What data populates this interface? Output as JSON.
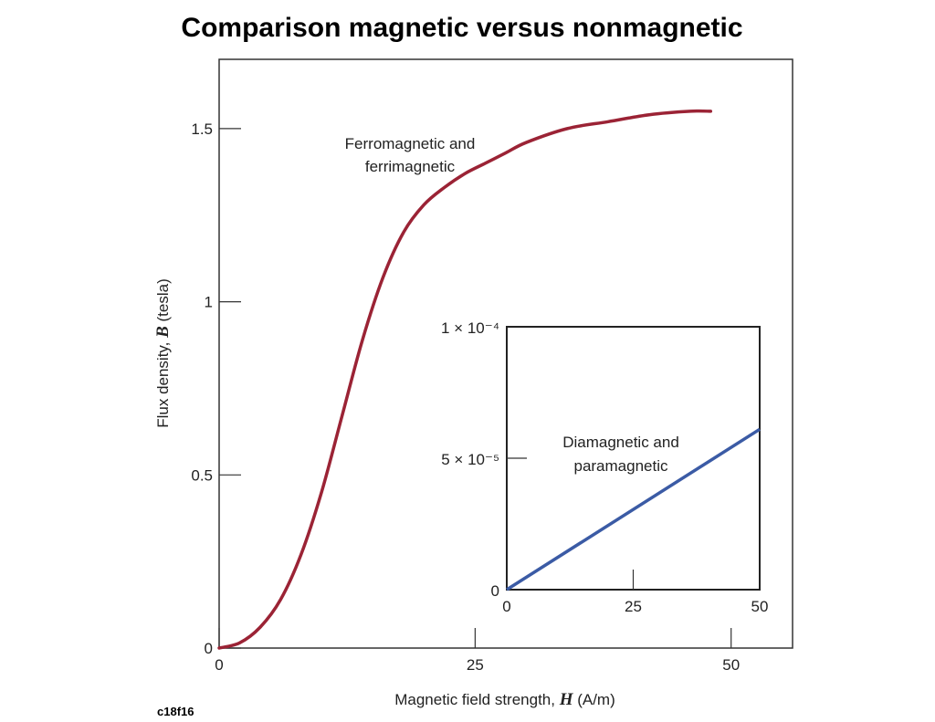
{
  "title": "Comparison magnetic versus nonmagnetic",
  "figure_code": "c18f16",
  "chart_data": [
    {
      "type": "line",
      "xlabel": "Magnetic field strength, ",
      "xlabel_var": "H",
      "xlabel_unit": " (A/m)",
      "ylabel": "Flux density, ",
      "ylabel_var": "B",
      "ylabel_unit": " (tesla)",
      "xlim": [
        0,
        56
      ],
      "ylim": [
        0,
        1.7
      ],
      "x_ticks": [
        0,
        25,
        50
      ],
      "x_tick_labels": [
        "0",
        "25",
        "50"
      ],
      "y_ticks": [
        0,
        0.5,
        1,
        1.5
      ],
      "y_tick_labels": [
        "0",
        "0.5",
        "1",
        "1.5"
      ],
      "grid": false,
      "series": [
        {
          "label": "Ferromagnetic and ferrimagnetic",
          "label_lines": [
            "Ferromagnetic and",
            "ferrimagnetic"
          ],
          "color": "#9b2335",
          "x": [
            0,
            2,
            4,
            6,
            8,
            10,
            12,
            14,
            16,
            18,
            20,
            22,
            24,
            26,
            28,
            30,
            34,
            38,
            42,
            46,
            48
          ],
          "y": [
            0,
            0.015,
            0.06,
            0.14,
            0.27,
            0.45,
            0.67,
            0.89,
            1.07,
            1.2,
            1.28,
            1.33,
            1.37,
            1.4,
            1.43,
            1.46,
            1.5,
            1.52,
            1.54,
            1.55,
            1.55
          ]
        }
      ]
    },
    {
      "type": "line",
      "xlim": [
        0,
        50
      ],
      "ylim": [
        0,
        0.0001
      ],
      "x_ticks": [
        0,
        25,
        50
      ],
      "x_tick_labels": [
        "0",
        "25",
        "50"
      ],
      "y_ticks": [
        0,
        5e-05,
        0.0001
      ],
      "y_tick_labels": [
        "0",
        "5 × 10⁻⁵",
        "1 × 10⁻⁴"
      ],
      "grid": false,
      "series": [
        {
          "label": "Diamagnetic and paramagnetic",
          "label_lines": [
            "Diamagnetic and",
            "paramagnetic"
          ],
          "color": "#3b5ba5",
          "x": [
            0,
            50
          ],
          "y": [
            0,
            6.1e-05
          ]
        }
      ]
    }
  ]
}
